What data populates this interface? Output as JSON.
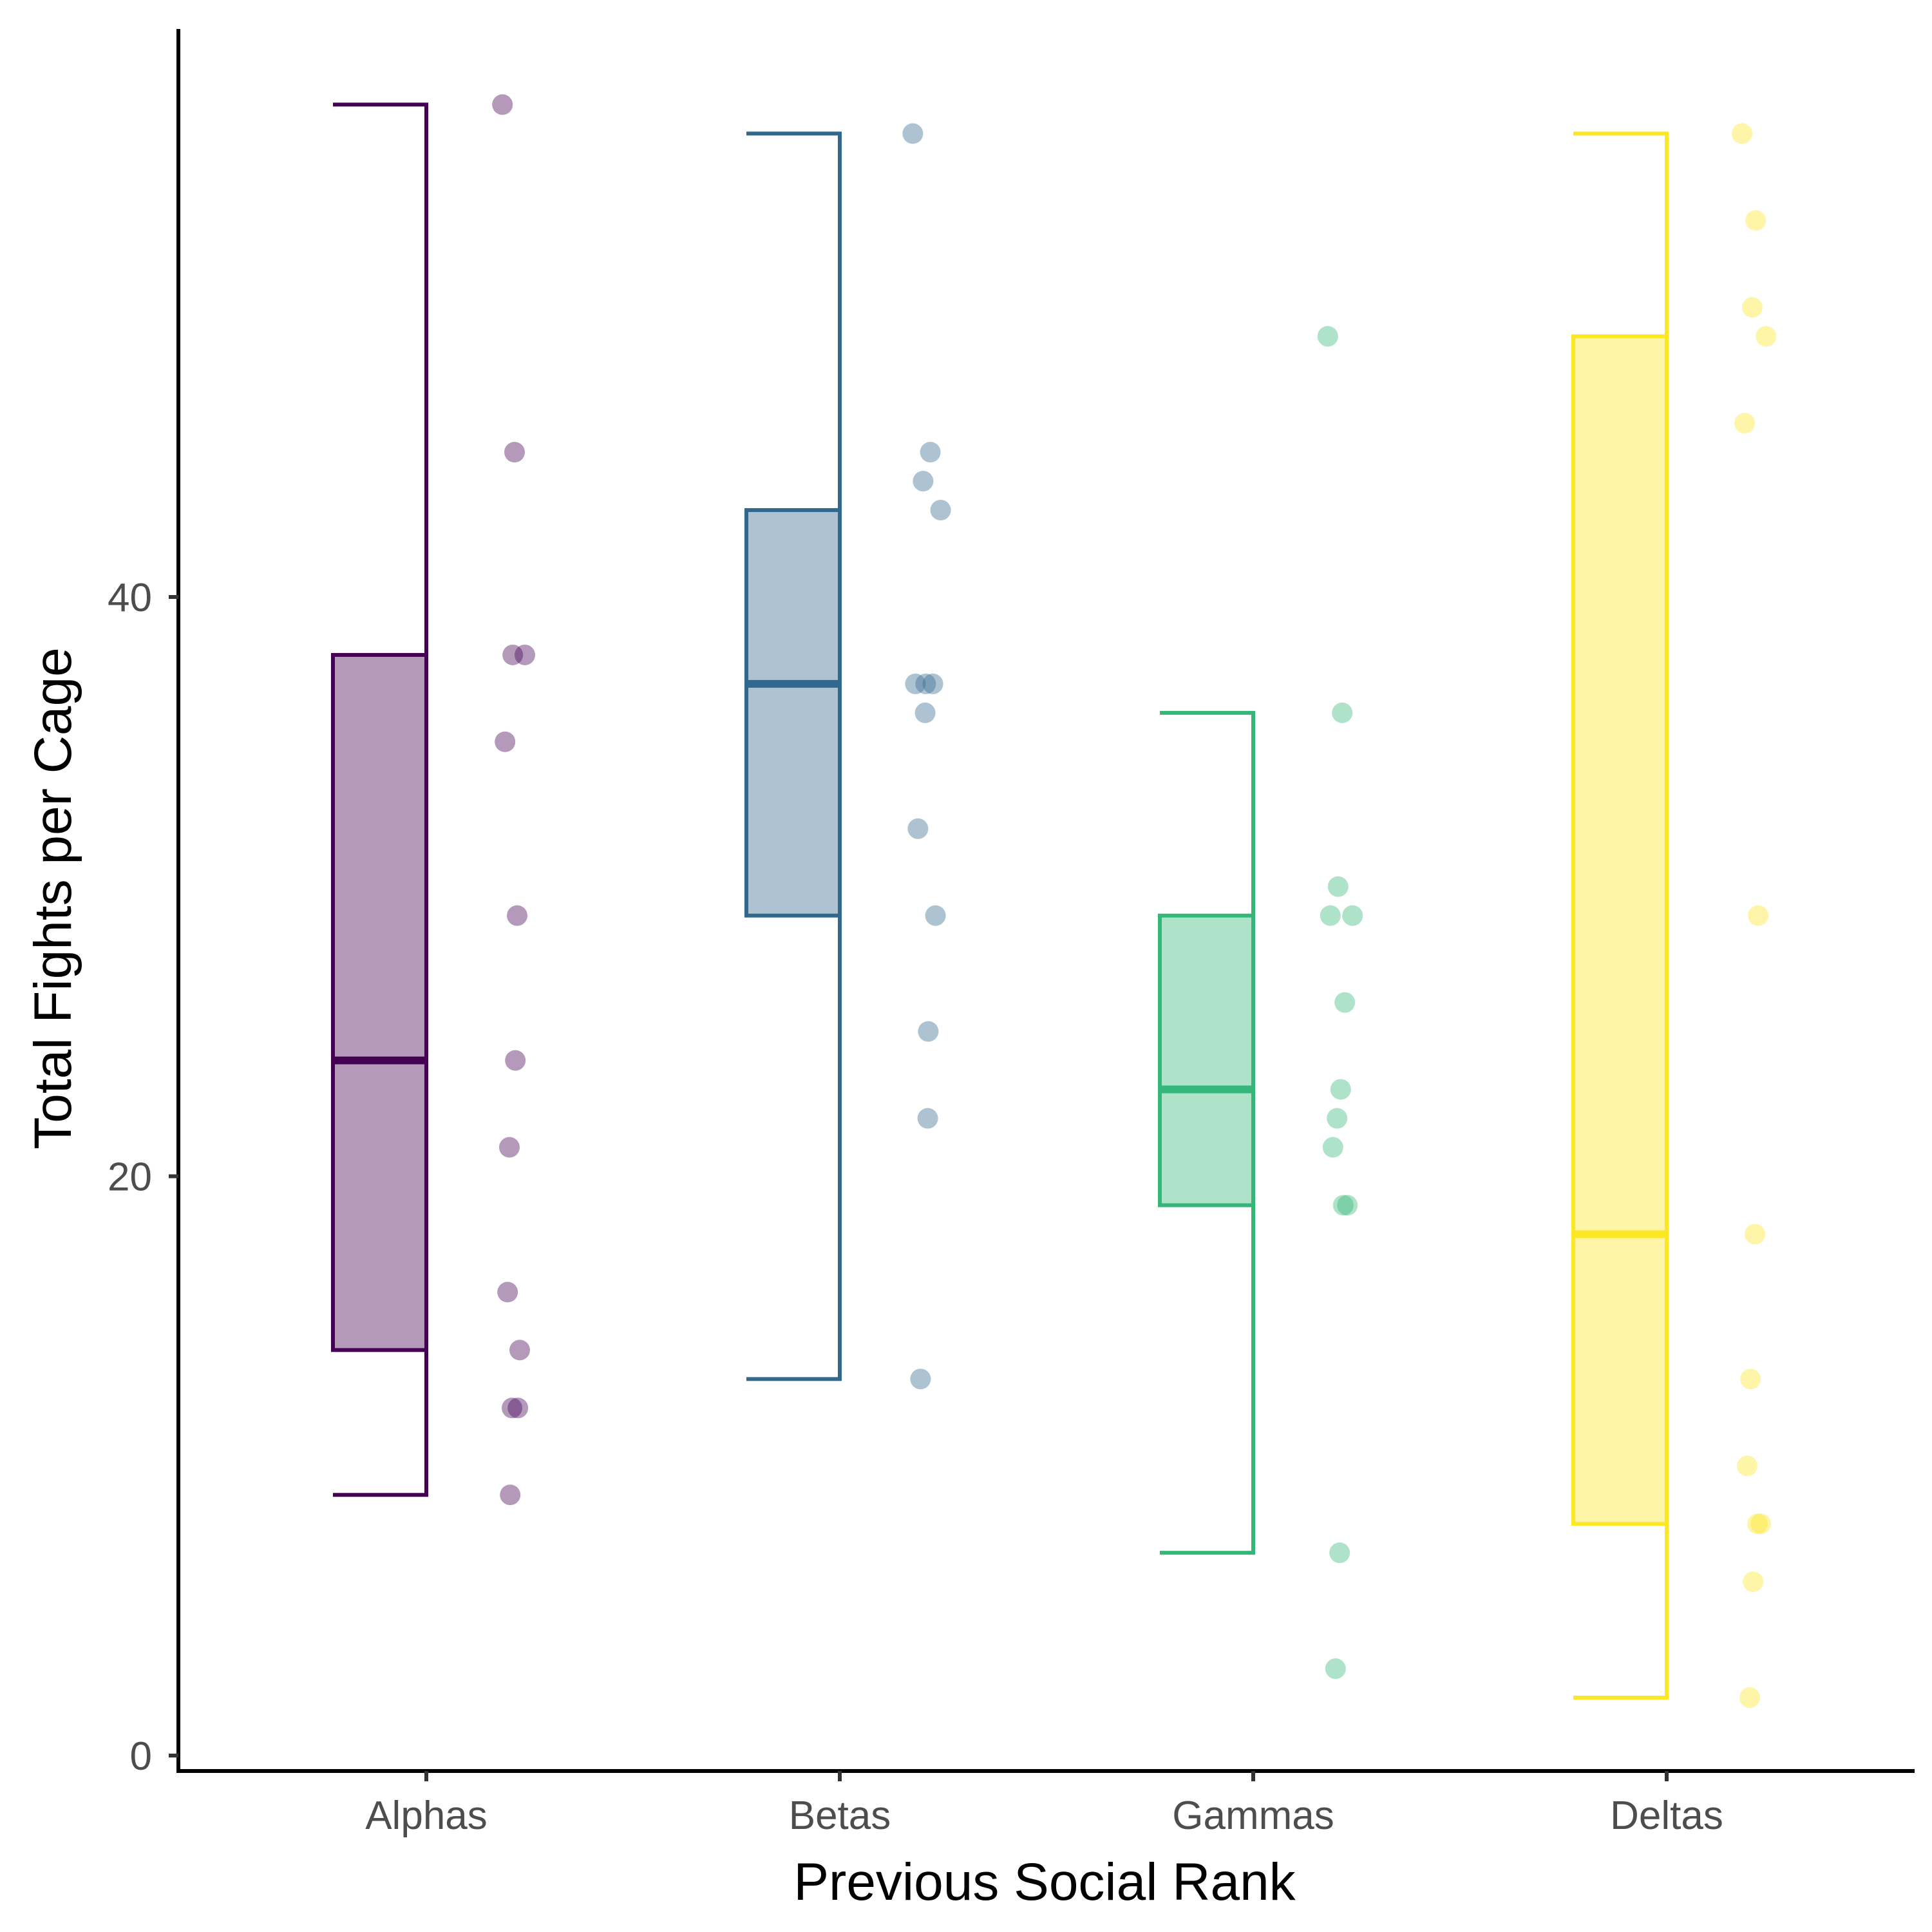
{
  "chart_data": {
    "type": "boxplot",
    "title": "",
    "xlabel": "Previous Social Rank",
    "ylabel": "Total Fights per Cage",
    "ylim": [
      0,
      60
    ],
    "yticks": [
      0,
      20,
      40
    ],
    "grid": false,
    "legend": "none",
    "categories": [
      "Alphas",
      "Betas",
      "Gammas",
      "Deltas"
    ],
    "colors": [
      "#440154",
      "#31688e",
      "#35b779",
      "#fde725"
    ],
    "boxes": [
      {
        "name": "Alphas",
        "whisker_low": 9,
        "q1": 14,
        "median": 24,
        "q3": 38,
        "whisker_high": 57
      },
      {
        "name": "Betas",
        "whisker_low": 13,
        "q1": 29,
        "median": 37,
        "q3": 43,
        "whisker_high": 56
      },
      {
        "name": "Gammas",
        "whisker_low": 7,
        "q1": 19,
        "median": 23,
        "q3": 29,
        "whisker_high": 36
      },
      {
        "name": "Deltas",
        "whisker_low": 2,
        "q1": 8,
        "median": 18,
        "q3": 49,
        "whisker_high": 56
      }
    ],
    "points": [
      {
        "name": "Alphas",
        "values": [
          57,
          45,
          38,
          38,
          35,
          29,
          24,
          21,
          16,
          14,
          12,
          12,
          9
        ]
      },
      {
        "name": "Betas",
        "values": [
          56,
          45,
          44,
          43,
          37,
          37,
          37,
          36,
          32,
          29,
          25,
          22,
          13
        ]
      },
      {
        "name": "Gammas",
        "values": [
          49,
          36,
          30,
          29,
          29,
          26,
          23,
          22,
          21,
          19,
          19,
          7,
          3
        ]
      },
      {
        "name": "Deltas",
        "values": [
          56,
          53,
          50,
          49,
          46,
          29,
          18,
          13,
          10,
          8,
          8,
          6,
          2
        ]
      }
    ]
  }
}
